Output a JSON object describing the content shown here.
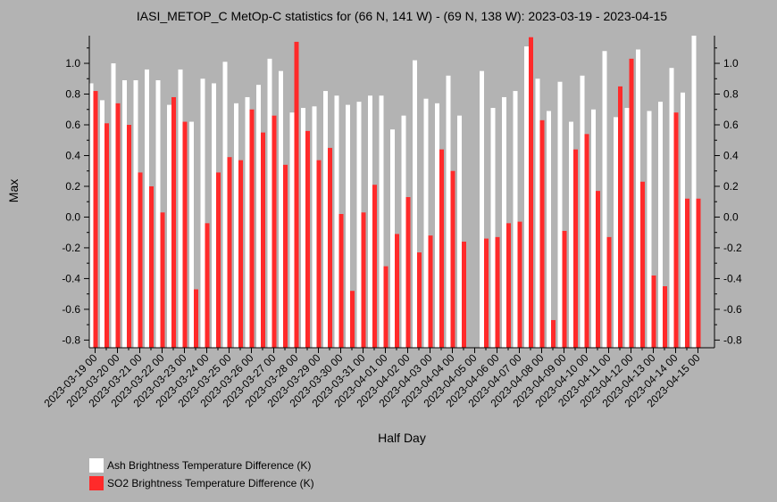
{
  "chart_data": {
    "type": "bar",
    "title": "IASI_METOP_C MetOp-C statistics for (66 N, 141 W) - (69 N, 138 W): 2023-03-19 - 2023-04-15",
    "xlabel": "Half Day",
    "ylabel": "Max",
    "ylim": [
      -0.85,
      1.18
    ],
    "yticks": [
      -0.8,
      -0.6,
      -0.4,
      -0.2,
      0.0,
      0.2,
      0.4,
      0.6,
      0.8,
      1.0
    ],
    "ytick_labels": [
      "-0.8",
      "-0.6",
      "-0.4",
      "-0.2",
      "0.0",
      "0.2",
      "0.4",
      "0.6",
      "0.8",
      "1.0"
    ],
    "xtick_labels": [
      "2023-03-19 00",
      "2023-03-20 00",
      "2023-03-21 00",
      "2023-03-22 00",
      "2023-03-23 00",
      "2023-03-24 00",
      "2023-03-25 00",
      "2023-03-26 00",
      "2023-03-27 00",
      "2023-03-28 00",
      "2023-03-29 00",
      "2023-03-30 00",
      "2023-03-31 00",
      "2023-04-01 00",
      "2023-04-02 00",
      "2023-04-03 00",
      "2023-04-04 00",
      "2023-04-05 00",
      "2023-04-06 00",
      "2023-04-07 00",
      "2023-04-08 00",
      "2023-04-09 00",
      "2023-04-10 00",
      "2023-04-11 00",
      "2023-04-12 00",
      "2023-04-13 00",
      "2023-04-14 00",
      "2023-04-15 00"
    ],
    "series": [
      {
        "name": "Ash Brightness Temperature Difference (K)",
        "color": "#ffffff",
        "values": [
          0.87,
          0.76,
          1.0,
          0.89,
          0.89,
          0.96,
          0.89,
          0.73,
          0.96,
          0.62,
          0.9,
          0.87,
          1.01,
          0.74,
          0.78,
          0.86,
          1.03,
          0.95,
          0.68,
          0.71,
          0.72,
          0.82,
          0.79,
          0.73,
          0.75,
          0.79,
          0.79,
          0.57,
          0.66,
          1.02,
          0.77,
          0.74,
          0.92,
          0.66,
          null,
          0.95,
          0.71,
          0.78,
          0.82,
          1.11,
          0.9,
          0.69,
          0.88,
          0.62,
          0.92,
          0.7,
          1.08,
          0.65,
          0.71,
          1.09,
          0.69,
          0.75,
          0.97,
          0.81,
          1.18
        ]
      },
      {
        "name": "SO2 Brightness Temperature Difference (K)",
        "color": "#ff2a2a",
        "values": [
          0.82,
          0.61,
          0.74,
          0.6,
          0.29,
          0.2,
          0.03,
          0.78,
          0.62,
          -0.47,
          -0.04,
          0.29,
          0.39,
          0.37,
          0.7,
          0.55,
          0.66,
          0.34,
          1.14,
          0.56,
          0.37,
          0.45,
          0.02,
          -0.48,
          0.03,
          0.21,
          -0.32,
          -0.11,
          0.13,
          -0.23,
          -0.12,
          0.44,
          0.3,
          -0.16,
          null,
          -0.14,
          -0.13,
          -0.04,
          -0.03,
          1.17,
          0.63,
          -0.67,
          -0.09,
          0.44,
          0.54,
          0.17,
          -0.13,
          0.85,
          1.03,
          0.23,
          -0.38,
          -0.45,
          0.68,
          0.12,
          0.12
        ]
      }
    ],
    "legend_placement": "bottom-left",
    "grid": false
  }
}
